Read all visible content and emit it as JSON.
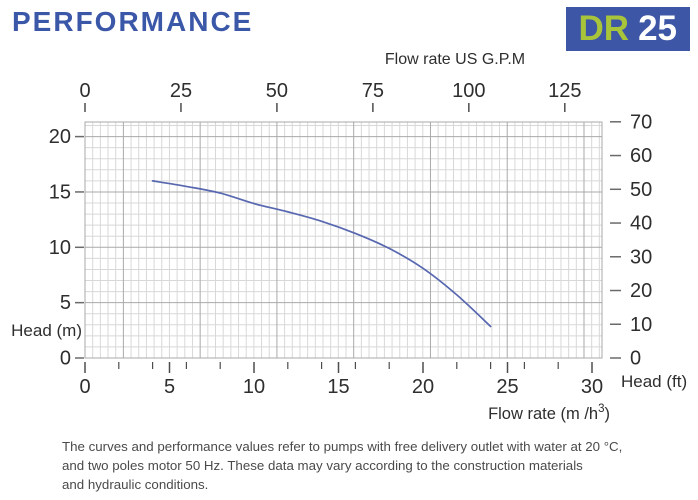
{
  "header": {
    "title": "PERFORMANCE",
    "model_series": "DR",
    "model_number": "25"
  },
  "chart_data": {
    "type": "line",
    "title": "",
    "x_axis_bottom": {
      "title": "Flow rate  (m /h³)",
      "title_parts": {
        "pre": "Flow rate  (m /h",
        "sup": "3",
        "post": ")"
      },
      "unit": "m3/h",
      "major_ticks": [
        0,
        5,
        10,
        15,
        20,
        25,
        30
      ],
      "minor_ticks": [
        2,
        4,
        6,
        8,
        12,
        14,
        16,
        18,
        22,
        24,
        26,
        28
      ],
      "range": [
        0,
        30.6
      ]
    },
    "x_axis_top": {
      "title": "Flow rate US  G.P.M",
      "unit": "US GPM",
      "ticks": [
        0,
        25,
        50,
        75,
        100,
        125
      ],
      "gpm_per_m3h": 4.4029
    },
    "y_axis_left": {
      "title": "Head (m)",
      "unit": "m",
      "ticks": [
        0,
        5,
        10,
        15,
        20
      ],
      "range": [
        0,
        21.34
      ]
    },
    "y_axis_right": {
      "title": "Head (ft)",
      "unit": "ft",
      "ticks": [
        0,
        10,
        20,
        30,
        40,
        50,
        60,
        70
      ],
      "ft_per_m": 3.2808
    },
    "grid": {
      "on": true,
      "minor_x_step_gpm": 2,
      "major_x_gpm": [
        10,
        30,
        50,
        70,
        90,
        110,
        130
      ],
      "minor_y_step_m": 1,
      "major_y_m": [
        5,
        10,
        15,
        20
      ]
    },
    "legend": "none",
    "series": [
      {
        "name": "DR 25 head-flow curve",
        "points_m3h_vs_head_m": [
          [
            4,
            16.0
          ],
          [
            6,
            15.5
          ],
          [
            8,
            14.9
          ],
          [
            10,
            13.95
          ],
          [
            12,
            13.2
          ],
          [
            14,
            12.35
          ],
          [
            16,
            11.25
          ],
          [
            18,
            9.9
          ],
          [
            20,
            8.1
          ],
          [
            22,
            5.7
          ],
          [
            24,
            2.85
          ]
        ]
      }
    ]
  },
  "footer": {
    "lines": [
      "The curves and performance values refer to pumps with free delivery outlet with water at 20 °C,",
      "and two poles motor 50 Hz. These data may vary according to the construction materials",
      "and hydraulic conditions."
    ]
  },
  "colors": {
    "accent_blue": "#3b57a8",
    "badge_background": "#3d56a5",
    "badge_green": "#a8c43a",
    "curve": "#5767b0",
    "grid_minor": "#d8d8d8",
    "grid_major": "#a9a9a9",
    "tick": "#4d4d4d",
    "label_text": "#2e2e2e",
    "footer_text": "#4a4a4a"
  }
}
